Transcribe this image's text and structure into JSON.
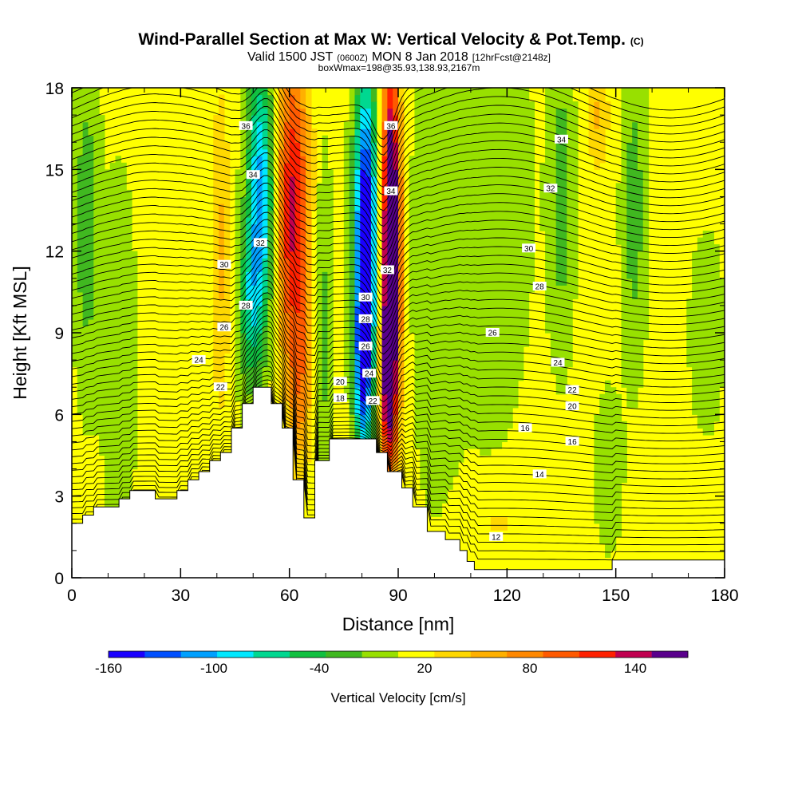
{
  "chart_data": {
    "type": "heatmap",
    "title": "Wind-Parallel Section at Max W: Vertical Velocity & Pot.Temp.",
    "title_mark": "(C)",
    "subtitle_parts": [
      "Valid 1500 JST",
      "(0600Z)",
      "MON 8 Jan 2018",
      "[12hrFcst@2148z]"
    ],
    "subtitle2": "boxWmax=198@35.93,138.93,2167m",
    "xlabel": "Distance [nm]",
    "ylabel": "Height [Kft MSL]",
    "xlim": [
      0,
      180
    ],
    "ylim": [
      0,
      18
    ],
    "x_ticks": [
      0,
      30,
      60,
      90,
      120,
      150,
      180
    ],
    "y_ticks": [
      0,
      3,
      6,
      9,
      12,
      15,
      18
    ],
    "colorbar": {
      "label": "Vertical Velocity [cm/s]",
      "tick_labels": [
        "-160",
        "-100",
        "-40",
        "20",
        "80",
        "140"
      ],
      "tick_values": [
        -160,
        -100,
        -40,
        20,
        80,
        140
      ],
      "range": [
        -160,
        170
      ],
      "colors": [
        "#1a00ff",
        "#0050ff",
        "#00a0ff",
        "#00e8ff",
        "#00d890",
        "#10c040",
        "#40b820",
        "#98e000",
        "#ffff00",
        "#ffd800",
        "#ffb000",
        "#ff8800",
        "#ff5a00",
        "#ff2000",
        "#c00050",
        "#5a008c"
      ]
    },
    "terrain": [
      [
        0,
        2.0
      ],
      [
        3,
        2.0
      ],
      [
        3,
        2.3
      ],
      [
        6,
        2.3
      ],
      [
        6,
        2.6
      ],
      [
        13,
        2.6
      ],
      [
        13,
        2.9
      ],
      [
        16,
        2.9
      ],
      [
        16,
        3.2
      ],
      [
        23,
        3.2
      ],
      [
        23,
        2.9
      ],
      [
        29,
        2.9
      ],
      [
        29,
        3.2
      ],
      [
        32,
        3.2
      ],
      [
        32,
        3.6
      ],
      [
        35,
        3.6
      ],
      [
        35,
        3.9
      ],
      [
        38,
        3.9
      ],
      [
        38,
        4.3
      ],
      [
        41,
        4.3
      ],
      [
        41,
        4.6
      ],
      [
        44,
        4.6
      ],
      [
        44,
        5.5
      ],
      [
        47,
        5.5
      ],
      [
        47,
        6.4
      ],
      [
        50,
        6.4
      ],
      [
        50,
        7.0
      ],
      [
        55,
        7.0
      ],
      [
        55,
        6.4
      ],
      [
        58,
        6.4
      ],
      [
        58,
        5.5
      ],
      [
        61,
        5.5
      ],
      [
        61,
        3.6
      ],
      [
        64,
        3.6
      ],
      [
        64,
        2.2
      ],
      [
        67,
        2.2
      ],
      [
        67,
        4.3
      ],
      [
        71,
        4.3
      ],
      [
        71,
        5.1
      ],
      [
        84,
        5.1
      ],
      [
        84,
        4.6
      ],
      [
        87,
        4.6
      ],
      [
        87,
        3.9
      ],
      [
        91,
        3.9
      ],
      [
        91,
        3.3
      ],
      [
        94,
        3.3
      ],
      [
        94,
        2.6
      ],
      [
        98,
        2.6
      ],
      [
        98,
        1.7
      ],
      [
        103,
        1.7
      ],
      [
        103,
        1.4
      ],
      [
        107,
        1.4
      ],
      [
        107,
        1.0
      ],
      [
        109,
        1.0
      ],
      [
        109,
        0.6
      ],
      [
        111,
        0.6
      ],
      [
        111,
        0.3
      ],
      [
        149,
        0.3
      ],
      [
        149,
        0.65
      ],
      [
        175,
        0.65
      ],
      [
        175,
        0.65
      ],
      [
        181,
        0.65
      ]
    ],
    "theta_contours": [
      {
        "label": "12",
        "label_x": 117,
        "label_y": 1.5
      },
      {
        "label": "14",
        "label_x": 129,
        "label_y": 3.8
      },
      {
        "label": "16",
        "label_x": 125,
        "label_y": 5.5
      },
      {
        "label": "16",
        "label_x": 138,
        "label_y": 5.0
      },
      {
        "label": "18",
        "label_x": 74,
        "label_y": 6.6
      },
      {
        "label": "20",
        "label_x": 74,
        "label_y": 7.2
      },
      {
        "label": "20",
        "label_x": 138,
        "label_y": 6.3
      },
      {
        "label": "22",
        "label_x": 41,
        "label_y": 7.0
      },
      {
        "label": "22",
        "label_x": 138,
        "label_y": 6.9
      },
      {
        "label": "22",
        "label_x": 83,
        "label_y": 6.5
      },
      {
        "label": "24",
        "label_x": 35,
        "label_y": 8.0
      },
      {
        "label": "24",
        "label_x": 82,
        "label_y": 7.5
      },
      {
        "label": "24",
        "label_x": 134,
        "label_y": 7.9
      },
      {
        "label": "26",
        "label_x": 42,
        "label_y": 9.2
      },
      {
        "label": "26",
        "label_x": 81,
        "label_y": 8.5
      },
      {
        "label": "26",
        "label_x": 116,
        "label_y": 9.0
      },
      {
        "label": "28",
        "label_x": 48,
        "label_y": 10.0
      },
      {
        "label": "28",
        "label_x": 81,
        "label_y": 9.5
      },
      {
        "label": "28",
        "label_x": 129,
        "label_y": 10.7
      },
      {
        "label": "30",
        "label_x": 42,
        "label_y": 11.5
      },
      {
        "label": "30",
        "label_x": 81,
        "label_y": 10.3
      },
      {
        "label": "30",
        "label_x": 126,
        "label_y": 12.1
      },
      {
        "label": "32",
        "label_x": 52,
        "label_y": 12.3
      },
      {
        "label": "32",
        "label_x": 87,
        "label_y": 11.3
      },
      {
        "label": "32",
        "label_x": 132,
        "label_y": 14.3
      },
      {
        "label": "34",
        "label_x": 50,
        "label_y": 14.8
      },
      {
        "label": "34",
        "label_x": 88,
        "label_y": 14.2
      },
      {
        "label": "34",
        "label_x": 135,
        "label_y": 16.1
      },
      {
        "label": "36",
        "label_x": 48,
        "label_y": 16.6
      },
      {
        "label": "36",
        "label_x": 88,
        "label_y": 16.6
      }
    ]
  }
}
